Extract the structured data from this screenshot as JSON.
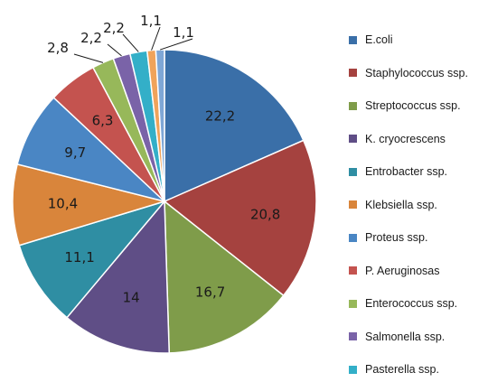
{
  "chart_data": {
    "type": "pie",
    "categories": [
      "E.coli",
      "Staphylococcus ssp.",
      "Streptococcus ssp.",
      "K. cryocrescens",
      "Entrobacter ssp.",
      "Klebsiella ssp.",
      "Proteus ssp.",
      "P. Aeruginosas",
      "Enterococcus ssp.",
      "Salmonella ssp.",
      "Pasterella ssp.",
      "",
      ""
    ],
    "values": [
      22.2,
      20.8,
      16.7,
      14,
      11.1,
      10.4,
      9.7,
      6.3,
      2.8,
      2.2,
      2.2,
      1.1,
      1.1
    ],
    "data_labels": [
      "22,2",
      "20,8",
      "16,7",
      "14",
      "11,1",
      "10,4",
      "9,7",
      "6,3",
      "2,8",
      "2,2",
      "2,2",
      "1,1",
      "1,1"
    ],
    "colors": [
      "#3a6fa8",
      "#a5423f",
      "#7f9c4a",
      "#5f4e86",
      "#2f8ea3",
      "#d9853b",
      "#4a86c4",
      "#c4534f",
      "#97b85a",
      "#7a63a8",
      "#33afc8",
      "#f0a35a",
      "#7fa7d6"
    ],
    "legend": {
      "position": "right",
      "entries": [
        "E.coli",
        "Staphylococcus ssp.",
        "Streptococcus ssp.",
        "K. cryocrescens",
        "Entrobacter ssp.",
        "Klebsiella ssp.",
        "Proteus ssp.",
        "P. Aeruginosas",
        "Enterococcus ssp.",
        "Salmonella ssp.",
        "Pasterella ssp."
      ]
    },
    "title": "",
    "start_angle": "12 o'clock",
    "direction": "clockwise"
  }
}
